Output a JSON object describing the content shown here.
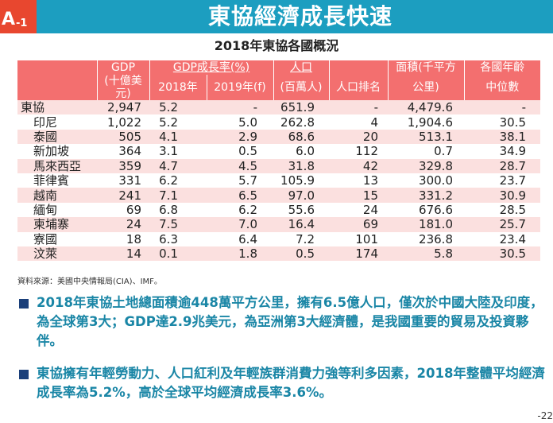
{
  "header": {
    "badge_letter": "A",
    "badge_number": "-1",
    "title": "東協經濟成長快速"
  },
  "table_title": "2018年東協各國概況",
  "columns": {
    "gdp": "GDP",
    "gdp_unit": "(十億美元)",
    "growth": "GDP成長率(%)",
    "y2018": "2018年",
    "y2019": "2019年(f)",
    "pop": "人口",
    "pop_unit": "(百萬人)",
    "pop_rank": "人口排名",
    "area": "面積(千平方",
    "area_unit": "公里)",
    "age": "各國年齡",
    "age_unit": "中位數"
  },
  "rows": [
    [
      "東協",
      "2,947",
      "5.2",
      "-",
      "651.9",
      "-",
      "4,479.6",
      "-"
    ],
    [
      "印尼",
      "1,022",
      "5.2",
      "5.0",
      "262.8",
      "4",
      "1,904.6",
      "30.5"
    ],
    [
      "泰國",
      "505",
      "4.1",
      "2.9",
      "68.6",
      "20",
      "513.1",
      "38.1"
    ],
    [
      "新加坡",
      "364",
      "3.1",
      "0.5",
      "6.0",
      "112",
      "0.7",
      "34.9"
    ],
    [
      "馬來西亞",
      "359",
      "4.7",
      "4.5",
      "31.8",
      "42",
      "329.8",
      "28.7"
    ],
    [
      "菲律賓",
      "331",
      "6.2",
      "5.7",
      "105.9",
      "13",
      "300.0",
      "23.7"
    ],
    [
      "越南",
      "241",
      "7.1",
      "6.5",
      "97.0",
      "15",
      "331.2",
      "30.9"
    ],
    [
      "緬甸",
      "69",
      "6.8",
      "6.2",
      "55.6",
      "24",
      "676.6",
      "28.5"
    ],
    [
      "柬埔寨",
      "24",
      "7.5",
      "7.0",
      "16.4",
      "69",
      "181.0",
      "25.7"
    ],
    [
      "寮國",
      "18",
      "6.3",
      "6.4",
      "7.2",
      "101",
      "236.8",
      "23.4"
    ],
    [
      "汶萊",
      "14",
      "0.1",
      "1.8",
      "0.5",
      "174",
      "5.8",
      "30.5"
    ]
  ],
  "source": "資料來源：美國中央情報局(CIA)、IMF。",
  "bullets": [
    "2018年東協土地總面積逾448萬平方公里，擁有6.5億人口，僅次於中國大陸及印度，為全球第3大；GDP達2.9兆美元，為亞洲第3大經濟體，是我國重要的貿易及投資夥伴。",
    "東協擁有年輕勞動力、人口紅利及年輕族群消費力強等利多因素，2018年整體平均經濟成長率為5.2%，高於全球平均經濟成長率3.6%。"
  ],
  "page_number": "-22"
}
